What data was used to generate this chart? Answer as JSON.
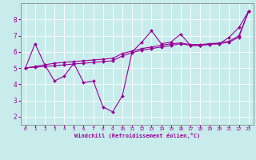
{
  "xlabel": "Windchill (Refroidissement éolien,°C)",
  "bg_color": "#c8ecec",
  "line_color": "#990099",
  "grid_color": "#ffffff",
  "xlim": [
    -0.5,
    23.5
  ],
  "ylim": [
    1.5,
    9.0
  ],
  "xticks": [
    0,
    1,
    2,
    3,
    4,
    5,
    6,
    7,
    8,
    9,
    10,
    11,
    12,
    13,
    14,
    15,
    16,
    17,
    18,
    19,
    20,
    21,
    22,
    23
  ],
  "yticks": [
    2,
    3,
    4,
    5,
    6,
    7,
    8
  ],
  "series1_x": [
    0,
    1,
    2,
    3,
    4,
    5,
    6,
    7,
    8,
    9,
    10,
    11,
    12,
    13,
    14,
    15,
    16,
    17,
    18,
    19,
    20,
    21,
    22,
    23
  ],
  "series1_y": [
    5.0,
    6.5,
    5.2,
    4.2,
    4.5,
    5.3,
    4.1,
    4.2,
    2.6,
    2.3,
    3.3,
    6.0,
    6.6,
    7.3,
    6.5,
    6.6,
    7.1,
    6.4,
    6.4,
    6.5,
    6.5,
    6.9,
    7.5,
    8.5
  ],
  "series2_x": [
    0,
    1,
    2,
    3,
    4,
    5,
    6,
    7,
    8,
    9,
    10,
    11,
    12,
    13,
    14,
    15,
    16,
    17,
    18,
    19,
    20,
    21,
    22,
    23
  ],
  "series2_y": [
    5.0,
    5.1,
    5.2,
    5.3,
    5.35,
    5.4,
    5.45,
    5.5,
    5.55,
    5.6,
    5.9,
    6.05,
    6.2,
    6.3,
    6.4,
    6.5,
    6.55,
    6.45,
    6.45,
    6.5,
    6.55,
    6.65,
    7.0,
    8.5
  ],
  "series3_x": [
    0,
    1,
    2,
    3,
    4,
    5,
    6,
    7,
    8,
    9,
    10,
    11,
    12,
    13,
    14,
    15,
    16,
    17,
    18,
    19,
    20,
    21,
    22,
    23
  ],
  "series3_y": [
    5.0,
    5.05,
    5.1,
    5.15,
    5.2,
    5.25,
    5.3,
    5.35,
    5.4,
    5.45,
    5.75,
    5.95,
    6.1,
    6.2,
    6.3,
    6.4,
    6.5,
    6.4,
    6.4,
    6.45,
    6.5,
    6.6,
    6.9,
    8.5
  ]
}
